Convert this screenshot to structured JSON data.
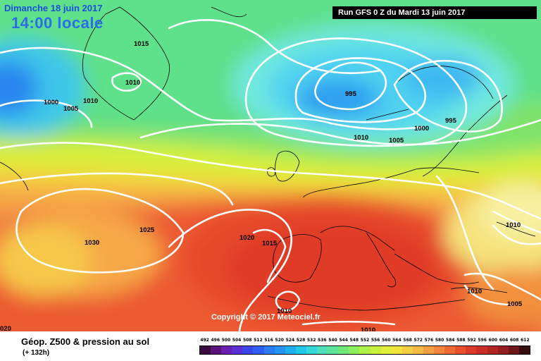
{
  "header": {
    "date_title": "Dimanche 18 juin 2017",
    "local_time": "14:00 locale",
    "run_info": "Run GFS 0 Z du Mardi 13 juin 2017"
  },
  "map": {
    "copyright": "Copyright © 2017 Meteociel.fr",
    "isobar_labels": [
      "1015",
      "1010",
      "1000",
      "1005",
      "1010",
      "995",
      "1000",
      "995",
      "1010",
      "1005",
      "1025",
      "1030",
      "1020",
      "1015",
      "1010",
      "1010",
      "1010",
      "1005",
      "1010",
      "020"
    ]
  },
  "footer": {
    "title": "Géop. Z500 & pression au sol",
    "subtitle": "(+ 132h)"
  },
  "legend": {
    "labels": [
      "492",
      "496",
      "500",
      "504",
      "508",
      "512",
      "516",
      "520",
      "524",
      "528",
      "532",
      "536",
      "540",
      "544",
      "548",
      "552",
      "556",
      "560",
      "564",
      "568",
      "572",
      "576",
      "580",
      "584",
      "588",
      "592",
      "596",
      "600",
      "604",
      "608",
      "612"
    ],
    "colors": [
      "#3b0a3f",
      "#5a137a",
      "#6a1fb0",
      "#5b2fd6",
      "#3c46e8",
      "#2f5ff0",
      "#2b7bf2",
      "#2493f2",
      "#1fb0f0",
      "#22c8ea",
      "#35d8d8",
      "#4ee0bd",
      "#5ee49a",
      "#70e879",
      "#8ded5c",
      "#adf246",
      "#c9f03a",
      "#e2ee3a",
      "#f2e43e",
      "#f5cf43",
      "#f6b946",
      "#f4a042",
      "#f2853b",
      "#ef6a33",
      "#e8502c",
      "#dc3a28",
      "#c92f26",
      "#b22622",
      "#951e20",
      "#6e161a",
      "#350d10"
    ]
  }
}
